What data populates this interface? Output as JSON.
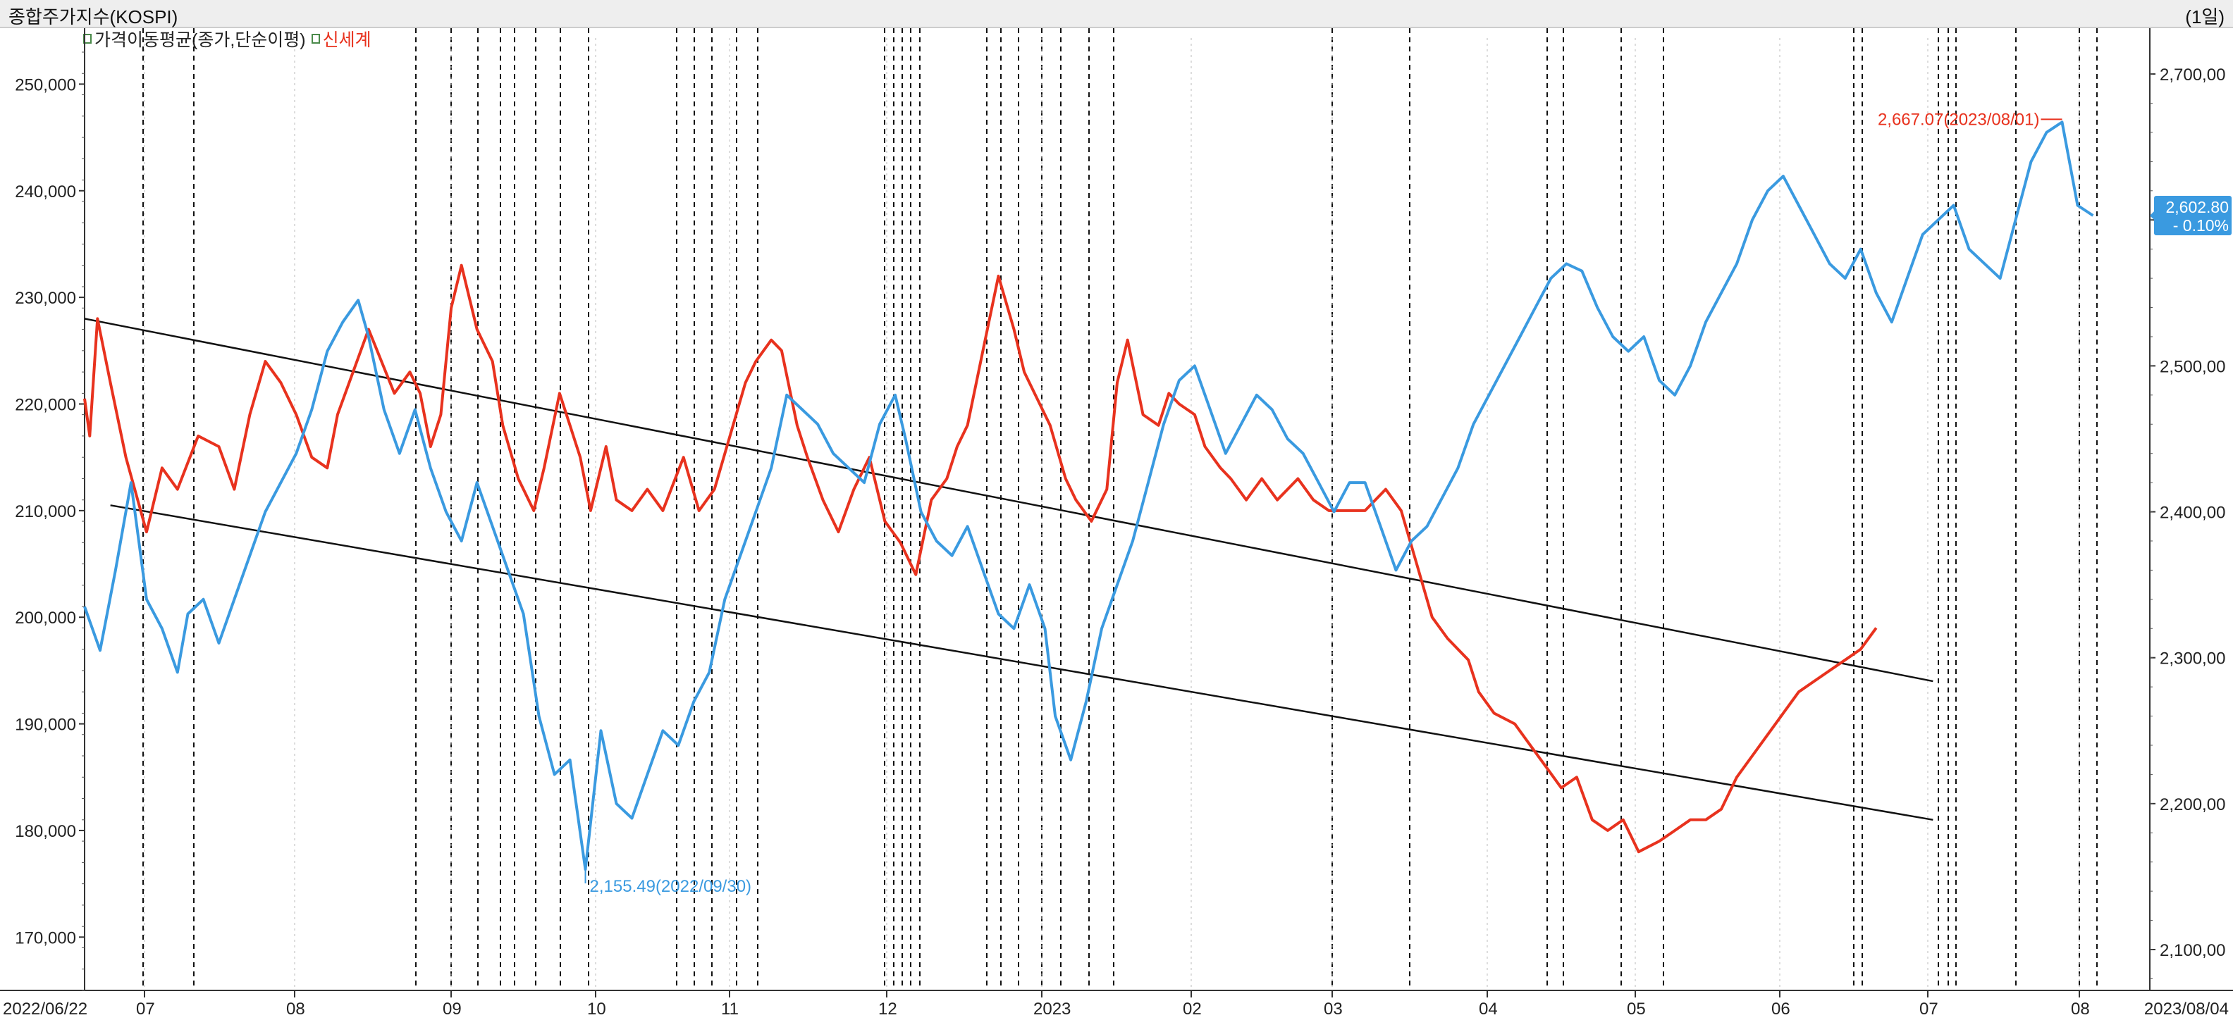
{
  "header": {
    "title": "종합주가지수(KOSPI)",
    "period": "(1일)"
  },
  "legend": {
    "items": [
      {
        "label": "가격이동평균(종가,단순이평)",
        "color": "#222222"
      },
      {
        "label": "신세계",
        "color": "#e8321e"
      }
    ]
  },
  "chart_data": {
    "type": "line",
    "x_start": "2022/06/22",
    "x_end": "2023/08/04",
    "month_labels": [
      "07",
      "08",
      "09",
      "10",
      "11",
      "12",
      "2023",
      "02",
      "03",
      "04",
      "05",
      "06",
      "07",
      "08"
    ],
    "left_axis": {
      "ticks": [
        "170,000",
        "180,000",
        "190,000",
        "200,000",
        "210,000",
        "220,000",
        "230,000",
        "240,000",
        "250,000"
      ],
      "range": [
        165000,
        253000
      ]
    },
    "right_axis": {
      "ticks": [
        "2,100,00",
        "2,200,00",
        "2,300,00",
        "2,400,00",
        "2,500,00",
        "2,600,00",
        "2,700,00"
      ],
      "range": [
        2072,
        2715
      ]
    },
    "series": [
      {
        "name": "신세계",
        "axis": "left",
        "color": "#e8321e",
        "points": [
          [
            0,
            220500
          ],
          [
            0.1,
            217000
          ],
          [
            0.25,
            228000
          ],
          [
            0.5,
            222000
          ],
          [
            0.8,
            215000
          ],
          [
            1.2,
            208000
          ],
          [
            1.5,
            214000
          ],
          [
            1.8,
            212000
          ],
          [
            2.2,
            217000
          ],
          [
            2.6,
            216000
          ],
          [
            2.9,
            212000
          ],
          [
            3.2,
            219000
          ],
          [
            3.5,
            224000
          ],
          [
            3.8,
            222000
          ],
          [
            4.1,
            219000
          ],
          [
            4.4,
            215000
          ],
          [
            4.7,
            214000
          ],
          [
            4.9,
            219000
          ],
          [
            5.2,
            223000
          ],
          [
            5.5,
            227000
          ],
          [
            6.0,
            221000
          ],
          [
            6.3,
            223000
          ],
          [
            6.5,
            221000
          ],
          [
            6.7,
            216000
          ],
          [
            6.9,
            219000
          ],
          [
            7.1,
            229000
          ],
          [
            7.3,
            233000
          ],
          [
            7.6,
            227000
          ],
          [
            7.9,
            224000
          ],
          [
            8.1,
            218000
          ],
          [
            8.4,
            213000
          ],
          [
            8.7,
            210000
          ],
          [
            8.9,
            214000
          ],
          [
            9.2,
            221000
          ],
          [
            9.4,
            218000
          ],
          [
            9.6,
            215000
          ],
          [
            9.8,
            210000
          ],
          [
            10.1,
            216000
          ],
          [
            10.3,
            211000
          ],
          [
            10.6,
            210000
          ],
          [
            10.9,
            212000
          ],
          [
            11.2,
            210000
          ],
          [
            11.6,
            215000
          ],
          [
            11.9,
            210000
          ],
          [
            12.2,
            212000
          ],
          [
            12.5,
            217000
          ],
          [
            12.8,
            222000
          ],
          [
            13.0,
            224000
          ],
          [
            13.3,
            226000
          ],
          [
            13.5,
            225000
          ],
          [
            13.8,
            218000
          ],
          [
            14.0,
            215000
          ],
          [
            14.3,
            211000
          ],
          [
            14.6,
            208000
          ],
          [
            14.9,
            212000
          ],
          [
            15.2,
            215000
          ],
          [
            15.5,
            209000
          ],
          [
            15.8,
            207000
          ],
          [
            16.1,
            204000
          ],
          [
            16.4,
            211000
          ],
          [
            16.7,
            213000
          ],
          [
            16.9,
            216000
          ],
          [
            17.1,
            218000
          ],
          [
            17.4,
            225000
          ],
          [
            17.7,
            232000
          ],
          [
            18.0,
            227000
          ],
          [
            18.2,
            223000
          ],
          [
            18.5,
            220000
          ],
          [
            18.7,
            218000
          ],
          [
            19.0,
            213000
          ],
          [
            19.2,
            211000
          ],
          [
            19.5,
            209000
          ],
          [
            19.8,
            212000
          ],
          [
            20.0,
            222000
          ],
          [
            20.2,
            226000
          ],
          [
            20.5,
            219000
          ],
          [
            20.8,
            218000
          ],
          [
            21.0,
            221000
          ],
          [
            21.2,
            220000
          ],
          [
            21.5,
            219000
          ],
          [
            21.7,
            216000
          ],
          [
            22.0,
            214000
          ],
          [
            22.2,
            213000
          ],
          [
            22.5,
            211000
          ],
          [
            22.8,
            213000
          ],
          [
            23.1,
            211000
          ],
          [
            23.5,
            213000
          ],
          [
            23.8,
            211000
          ],
          [
            24.1,
            210000
          ],
          [
            24.5,
            210000
          ],
          [
            24.8,
            210000
          ],
          [
            25.2,
            212000
          ],
          [
            25.5,
            210000
          ],
          [
            25.8,
            205000
          ],
          [
            26.1,
            200000
          ],
          [
            26.4,
            198000
          ],
          [
            26.8,
            196000
          ],
          [
            27.0,
            193000
          ],
          [
            27.3,
            191000
          ],
          [
            27.7,
            190000
          ],
          [
            28.0,
            188000
          ],
          [
            28.3,
            186000
          ],
          [
            28.6,
            184000
          ],
          [
            28.9,
            185000
          ],
          [
            29.2,
            181000
          ],
          [
            29.5,
            180000
          ],
          [
            29.8,
            181000
          ],
          [
            30.1,
            178000
          ],
          [
            30.5,
            179000
          ],
          [
            30.8,
            180000
          ],
          [
            31.1,
            181000
          ],
          [
            31.4,
            181000
          ],
          [
            31.7,
            182000
          ],
          [
            32.0,
            185000
          ],
          [
            32.3,
            187000
          ],
          [
            32.6,
            189000
          ],
          [
            32.9,
            191000
          ],
          [
            33.2,
            193000
          ],
          [
            33.5,
            194000
          ],
          [
            33.8,
            195000
          ],
          [
            34.1,
            196000
          ],
          [
            34.4,
            197000
          ],
          [
            34.7,
            199000
          ]
        ]
      },
      {
        "name": "KOSPI",
        "axis": "right",
        "color": "#3a9ae0",
        "points": [
          [
            0,
            2335
          ],
          [
            0.3,
            2305
          ],
          [
            0.6,
            2360
          ],
          [
            0.9,
            2420
          ],
          [
            1.2,
            2340
          ],
          [
            1.5,
            2320
          ],
          [
            1.8,
            2290
          ],
          [
            2.0,
            2330
          ],
          [
            2.3,
            2340
          ],
          [
            2.6,
            2310
          ],
          [
            2.9,
            2340
          ],
          [
            3.2,
            2370
          ],
          [
            3.5,
            2400
          ],
          [
            3.8,
            2420
          ],
          [
            4.1,
            2440
          ],
          [
            4.4,
            2470
          ],
          [
            4.7,
            2510
          ],
          [
            5.0,
            2530
          ],
          [
            5.3,
            2545
          ],
          [
            5.5,
            2520
          ],
          [
            5.8,
            2470
          ],
          [
            6.1,
            2440
          ],
          [
            6.4,
            2470
          ],
          [
            6.7,
            2430
          ],
          [
            7.0,
            2400
          ],
          [
            7.3,
            2380
          ],
          [
            7.6,
            2420
          ],
          [
            7.9,
            2390
          ],
          [
            8.2,
            2360
          ],
          [
            8.5,
            2330
          ],
          [
            8.8,
            2260
          ],
          [
            9.1,
            2220
          ],
          [
            9.4,
            2230
          ],
          [
            9.7,
            2155
          ],
          [
            10.0,
            2250
          ],
          [
            10.3,
            2200
          ],
          [
            10.6,
            2190
          ],
          [
            10.9,
            2220
          ],
          [
            11.2,
            2250
          ],
          [
            11.5,
            2240
          ],
          [
            11.8,
            2270
          ],
          [
            12.1,
            2290
          ],
          [
            12.4,
            2340
          ],
          [
            12.7,
            2370
          ],
          [
            13.0,
            2400
          ],
          [
            13.3,
            2430
          ],
          [
            13.6,
            2480
          ],
          [
            13.9,
            2470
          ],
          [
            14.2,
            2460
          ],
          [
            14.5,
            2440
          ],
          [
            14.8,
            2430
          ],
          [
            15.1,
            2420
          ],
          [
            15.4,
            2460
          ],
          [
            15.7,
            2480
          ],
          [
            15.9,
            2450
          ],
          [
            16.2,
            2400
          ],
          [
            16.5,
            2380
          ],
          [
            16.8,
            2370
          ],
          [
            17.1,
            2390
          ],
          [
            17.4,
            2360
          ],
          [
            17.7,
            2330
          ],
          [
            18.0,
            2320
          ],
          [
            18.3,
            2350
          ],
          [
            18.6,
            2320
          ],
          [
            18.8,
            2260
          ],
          [
            19.1,
            2230
          ],
          [
            19.4,
            2270
          ],
          [
            19.7,
            2320
          ],
          [
            20.0,
            2350
          ],
          [
            20.3,
            2380
          ],
          [
            20.6,
            2420
          ],
          [
            20.9,
            2460
          ],
          [
            21.2,
            2490
          ],
          [
            21.5,
            2500
          ],
          [
            21.8,
            2470
          ],
          [
            22.1,
            2440
          ],
          [
            22.4,
            2460
          ],
          [
            22.7,
            2480
          ],
          [
            23.0,
            2470
          ],
          [
            23.3,
            2450
          ],
          [
            23.6,
            2440
          ],
          [
            23.9,
            2420
          ],
          [
            24.2,
            2400
          ],
          [
            24.5,
            2420
          ],
          [
            24.8,
            2420
          ],
          [
            25.1,
            2390
          ],
          [
            25.4,
            2360
          ],
          [
            25.7,
            2380
          ],
          [
            26.0,
            2390
          ],
          [
            26.3,
            2410
          ],
          [
            26.6,
            2430
          ],
          [
            26.9,
            2460
          ],
          [
            27.2,
            2480
          ],
          [
            27.5,
            2500
          ],
          [
            27.8,
            2520
          ],
          [
            28.1,
            2540
          ],
          [
            28.4,
            2560
          ],
          [
            28.7,
            2570
          ],
          [
            29.0,
            2565
          ],
          [
            29.3,
            2540
          ],
          [
            29.6,
            2520
          ],
          [
            29.9,
            2510
          ],
          [
            30.2,
            2520
          ],
          [
            30.5,
            2490
          ],
          [
            30.8,
            2480
          ],
          [
            31.1,
            2500
          ],
          [
            31.4,
            2530
          ],
          [
            31.7,
            2550
          ],
          [
            32.0,
            2570
          ],
          [
            32.3,
            2600
          ],
          [
            32.6,
            2620
          ],
          [
            32.9,
            2630
          ],
          [
            33.2,
            2610
          ],
          [
            33.5,
            2590
          ],
          [
            33.8,
            2570
          ],
          [
            34.1,
            2560
          ],
          [
            34.4,
            2580
          ],
          [
            34.7,
            2550
          ],
          [
            35.0,
            2530
          ],
          [
            35.3,
            2560
          ],
          [
            35.6,
            2590
          ],
          [
            35.9,
            2600
          ],
          [
            36.2,
            2610
          ],
          [
            36.5,
            2580
          ],
          [
            36.8,
            2570
          ],
          [
            37.1,
            2560
          ],
          [
            37.4,
            2600
          ],
          [
            37.7,
            2640
          ],
          [
            38.0,
            2660
          ],
          [
            38.3,
            2667
          ],
          [
            38.6,
            2610
          ],
          [
            38.9,
            2603
          ]
        ]
      }
    ],
    "trend_lines": [
      {
        "from": [
          0,
          228000
        ],
        "to": [
          35.8,
          194000
        ],
        "axis": "left"
      },
      {
        "from": [
          0.5,
          210500
        ],
        "to": [
          35.8,
          181000
        ],
        "axis": "left"
      }
    ],
    "annotations": [
      {
        "text": "2,667.07(2023/08/01)",
        "color": "#e8321e"
      },
      {
        "text": "2,155.49(2022/09/30)",
        "color": "#3a9ae0"
      }
    ],
    "last_value": {
      "value": "2,602.80",
      "change": "- 0.10%",
      "color": "#3a9ae0"
    },
    "grid": false
  }
}
